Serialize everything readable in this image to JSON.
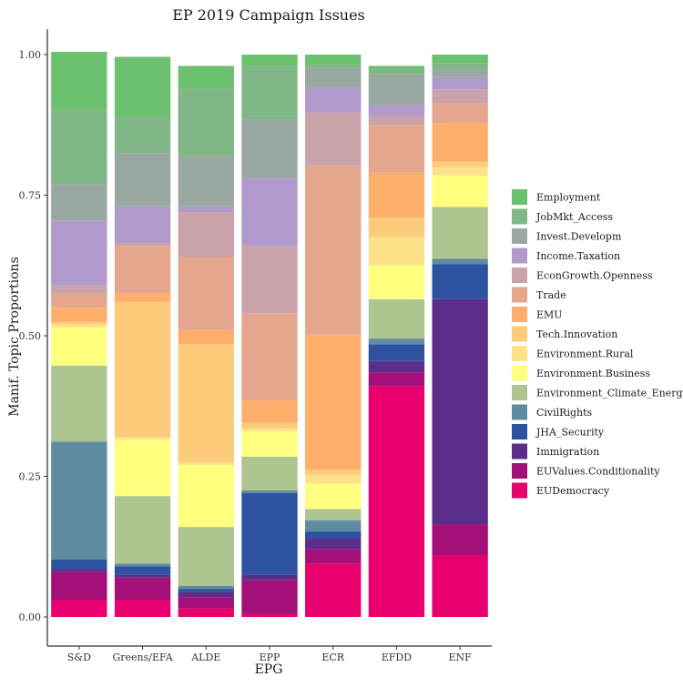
{
  "chart_data": {
    "type": "bar",
    "stacked": true,
    "title": "EP 2019 Campaign Issues",
    "xlabel": "EPG",
    "ylabel": "Manif. Topic Proportions",
    "ylim": [
      0,
      1
    ],
    "yticks": [
      0.0,
      0.25,
      0.5,
      0.75,
      1.0
    ],
    "ytick_labels": [
      "0.00",
      "0.25",
      "0.50",
      "0.75",
      "1.00"
    ],
    "grid": false,
    "legend_position": "right",
    "categories": [
      "S&D",
      "Greens/EFA",
      "ALDE",
      "EPP",
      "ECR",
      "EFDD",
      "ENF"
    ],
    "series": [
      {
        "name": "EUDemocracy",
        "color": "#e8006e",
        "values": [
          0.03,
          0.03,
          0.015,
          0.005,
          0.095,
          0.41,
          0.11
        ]
      },
      {
        "name": "EUValues.Conditionality",
        "color": "#a50f78",
        "values": [
          0.05,
          0.04,
          0.02,
          0.06,
          0.025,
          0.025,
          0.055
        ]
      },
      {
        "name": "Immigration",
        "color": "#5b2e8c",
        "values": [
          0.005,
          0.005,
          0.01,
          0.01,
          0.02,
          0.02,
          0.4
        ]
      },
      {
        "name": "JHA_Security",
        "color": "#2c52a0",
        "values": [
          0.017,
          0.015,
          0.005,
          0.145,
          0.012,
          0.03,
          0.062
        ]
      },
      {
        "name": "CivilRights",
        "color": "#5f8ca0",
        "values": [
          0.21,
          0.005,
          0.005,
          0.005,
          0.02,
          0.01,
          0.01
        ]
      },
      {
        "name": "Environment_Climate_Energy",
        "color": "#aec58f",
        "values": [
          0.135,
          0.12,
          0.105,
          0.06,
          0.02,
          0.07,
          0.092
        ]
      },
      {
        "name": "Environment.Business",
        "color": "#ffff80",
        "values": [
          0.068,
          0.1,
          0.11,
          0.045,
          0.045,
          0.06,
          0.056
        ]
      },
      {
        "name": "Environment.Rural",
        "color": "#fee28a",
        "values": [
          0.005,
          0.005,
          0.005,
          0.005,
          0.015,
          0.05,
          0.015
        ]
      },
      {
        "name": "Tech.Innovation",
        "color": "#fdcc7a",
        "values": [
          0.005,
          0.24,
          0.21,
          0.01,
          0.01,
          0.035,
          0.01
        ]
      },
      {
        "name": "EMU",
        "color": "#fdae6b",
        "values": [
          0.025,
          0.015,
          0.025,
          0.04,
          0.24,
          0.08,
          0.068
        ]
      },
      {
        "name": "Trade",
        "color": "#e4a78e",
        "values": [
          0.025,
          0.085,
          0.13,
          0.155,
          0.3,
          0.085,
          0.035
        ]
      },
      {
        "name": "EconGrowth.Openness",
        "color": "#c9a3a9",
        "values": [
          0.015,
          0.005,
          0.08,
          0.12,
          0.095,
          0.015,
          0.025
        ]
      },
      {
        "name": "Income.Taxation",
        "color": "#b09acc",
        "values": [
          0.115,
          0.065,
          0.01,
          0.12,
          0.045,
          0.02,
          0.022
        ]
      },
      {
        "name": "Invest.Developm",
        "color": "#9aa8a2",
        "values": [
          0.065,
          0.095,
          0.09,
          0.105,
          0.035,
          0.055,
          0.015
        ]
      },
      {
        "name": "JobMkt_Access",
        "color": "#7fb886",
        "values": [
          0.132,
          0.065,
          0.12,
          0.095,
          0.005,
          0.01,
          0.01
        ]
      },
      {
        "name": "Employment",
        "color": "#6cc16e",
        "values": [
          0.103,
          0.106,
          0.04,
          0.02,
          0.018,
          0.005,
          0.015
        ]
      }
    ],
    "legend_order": [
      "Employment",
      "JobMkt_Access",
      "Invest.Developm",
      "Income.Taxation",
      "EconGrowth.Openness",
      "Trade",
      "EMU",
      "Tech.Innovation",
      "Environment.Rural",
      "Environment.Business",
      "Environment_Climate_Energy",
      "CivilRights",
      "JHA_Security",
      "Immigration",
      "EUValues.Conditionality",
      "EUDemocracy"
    ]
  }
}
